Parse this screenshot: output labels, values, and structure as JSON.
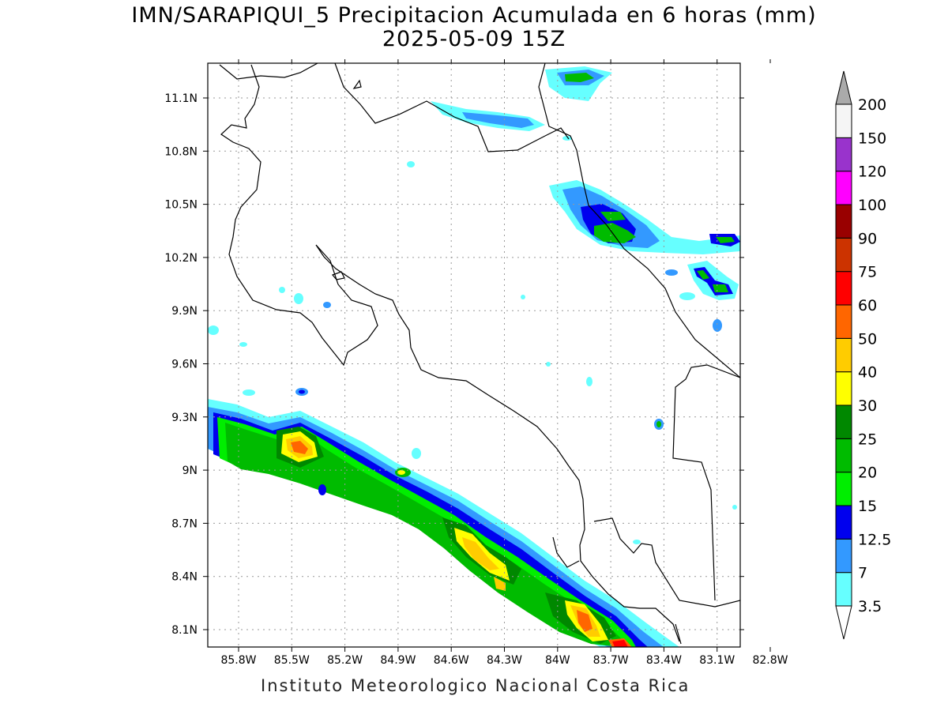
{
  "title_line1": "IMN/SARAPIQUI_5 Precipitacion Acumulada en 6 horas (mm)",
  "title_line2": "2025-05-09 15Z",
  "footer": "Instituto Meteorologico Nacional Costa Rica",
  "map": {
    "lon_range": [
      -86.0,
      -83.0
    ],
    "lat_range": [
      8.0,
      11.3
    ],
    "x_ticks": [
      {
        "lon": -85.8,
        "label": "85.8W"
      },
      {
        "lon": -85.5,
        "label": "85.5W"
      },
      {
        "lon": -85.2,
        "label": "85.2W"
      },
      {
        "lon": -84.9,
        "label": "84.9W"
      },
      {
        "lon": -84.6,
        "label": "84.6W"
      },
      {
        "lon": -84.3,
        "label": "84.3W"
      },
      {
        "lon": -84.0,
        "label": "84W"
      },
      {
        "lon": -83.7,
        "label": "83.7W"
      },
      {
        "lon": -83.4,
        "label": "83.4W"
      },
      {
        "lon": -83.1,
        "label": "83.1W"
      },
      {
        "lon": -82.8,
        "label": "82.8W"
      }
    ],
    "y_ticks": [
      {
        "lat": 11.1,
        "label": "11.1N"
      },
      {
        "lat": 10.8,
        "label": "10.8N"
      },
      {
        "lat": 10.5,
        "label": "10.5N"
      },
      {
        "lat": 10.2,
        "label": "10.2N"
      },
      {
        "lat": 9.9,
        "label": "9.9N"
      },
      {
        "lat": 9.6,
        "label": "9.6N"
      },
      {
        "lat": 9.3,
        "label": "9.3N"
      },
      {
        "lat": 9.0,
        "label": "9N"
      },
      {
        "lat": 8.7,
        "label": "8.7N"
      },
      {
        "lat": 8.4,
        "label": "8.4N"
      },
      {
        "lat": 8.1,
        "label": "8.1N"
      }
    ]
  },
  "colorbar": {
    "labels": [
      "3.5",
      "7",
      "12.5",
      "15",
      "20",
      "25",
      "30",
      "40",
      "50",
      "60",
      "75",
      "90",
      "100",
      "120",
      "150",
      "200"
    ],
    "colors": [
      "#66ffff",
      "#3399ff",
      "#0000ee",
      "#00ee00",
      "#00bb00",
      "#008800",
      "#ffff00",
      "#ffcc00",
      "#ff6600",
      "#ff0000",
      "#cc3300",
      "#990000",
      "#ff00ff",
      "#9933cc",
      "#f5f5f5",
      "#aaaaaa"
    ]
  }
}
